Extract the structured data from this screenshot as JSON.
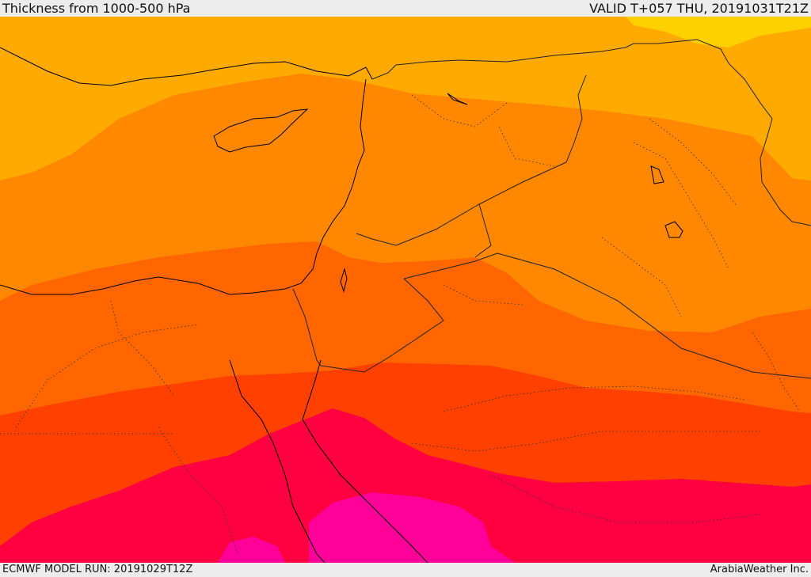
{
  "header": {
    "title": "Thickness from 1000-500 hPa",
    "valid": "VALID T+057 THU, 20191031T21Z"
  },
  "footer": {
    "model_run": "ECMWF MODEL RUN: 20191029T12Z",
    "credit": "ArabiaWeather Inc."
  },
  "colors": {
    "band_1": "#ffd000",
    "band_2": "#ffaa00",
    "band_3": "#ff8800",
    "band_4": "#ff6600",
    "band_5": "#ff4000",
    "band_6": "#ff0040",
    "band_7": "#ff0099",
    "coastline": "#000000",
    "borders": "#222222"
  }
}
